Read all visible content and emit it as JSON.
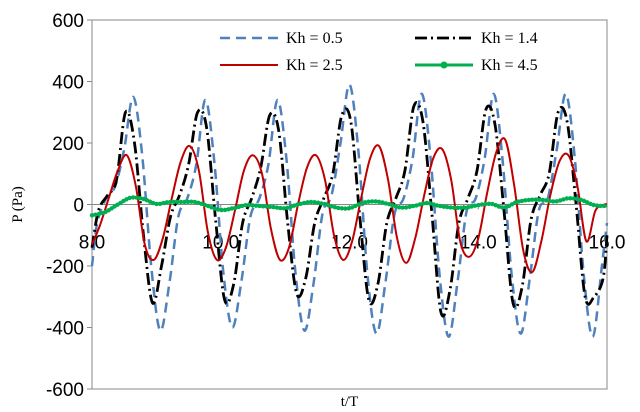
{
  "chart_data": {
    "type": "line",
    "title": "",
    "xlabel": "t/T",
    "ylabel": "P (Pa)",
    "xlim": [
      8.0,
      16.0
    ],
    "ylim": [
      -600,
      600
    ],
    "xticks": [
      "8.0",
      "10.0",
      "12.0",
      "14.0",
      "16.0"
    ],
    "yticks": [
      "600",
      "400",
      "200",
      "0",
      "-200",
      "-400",
      "-600"
    ],
    "grid": false,
    "legend_position": "top",
    "series": [
      {
        "name": "Kh = 0.5",
        "color": "#4f81bd",
        "style": "dashed",
        "x": [
          8.0,
          8.08,
          8.22,
          8.36,
          8.5,
          8.64,
          8.78,
          8.92,
          9.06,
          9.2,
          9.34,
          9.48,
          9.62,
          9.76,
          9.9,
          10.04,
          10.18,
          10.32,
          10.46,
          10.6,
          10.74,
          10.88,
          11.02,
          11.16,
          11.3,
          11.44,
          11.58,
          11.72,
          11.86,
          12.0,
          12.14,
          12.28,
          12.42,
          12.56,
          12.7,
          12.84,
          12.98,
          13.12,
          13.26,
          13.4,
          13.54,
          13.68,
          13.82,
          13.96,
          14.1,
          14.24,
          14.38,
          14.52,
          14.66,
          14.8,
          14.94,
          15.08,
          15.22,
          15.36,
          15.5,
          15.64,
          15.78,
          15.92,
          16.0
        ],
        "y": [
          -200,
          -60,
          20,
          60,
          180,
          350,
          160,
          -200,
          -410,
          -260,
          -40,
          20,
          130,
          340,
          140,
          -220,
          -400,
          -250,
          -40,
          20,
          130,
          340,
          150,
          -220,
          -410,
          -260,
          -30,
          30,
          200,
          390,
          170,
          -230,
          -420,
          -250,
          -30,
          20,
          150,
          360,
          150,
          -230,
          -430,
          -250,
          -20,
          20,
          150,
          360,
          140,
          -230,
          -420,
          -240,
          -20,
          20,
          180,
          360,
          150,
          -230,
          -430,
          -200,
          -60
        ]
      },
      {
        "name": "Kh = 1.4",
        "color": "#000000",
        "style": "dashdot",
        "x": [
          8.0,
          8.1,
          8.24,
          8.38,
          8.52,
          8.66,
          8.8,
          8.94,
          9.08,
          9.22,
          9.36,
          9.5,
          9.64,
          9.78,
          9.92,
          10.06,
          10.2,
          10.34,
          10.48,
          10.62,
          10.76,
          10.9,
          11.04,
          11.18,
          11.32,
          11.46,
          11.6,
          11.74,
          11.88,
          12.02,
          12.16,
          12.3,
          12.44,
          12.58,
          12.72,
          12.86,
          13.0,
          13.14,
          13.28,
          13.42,
          13.56,
          13.7,
          13.84,
          13.98,
          14.12,
          14.26,
          14.4,
          14.54,
          14.68,
          14.82,
          14.96,
          15.1,
          15.24,
          15.38,
          15.52,
          15.66,
          15.8,
          15.94,
          16.0
        ],
        "y": [
          -140,
          -20,
          30,
          80,
          300,
          200,
          -100,
          -320,
          -200,
          -40,
          30,
          130,
          300,
          250,
          -50,
          -310,
          -260,
          -60,
          20,
          120,
          290,
          240,
          -60,
          -290,
          -240,
          -60,
          20,
          100,
          290,
          270,
          -40,
          -310,
          -260,
          -60,
          20,
          110,
          320,
          270,
          -30,
          -350,
          -280,
          -60,
          20,
          110,
          310,
          260,
          -20,
          -320,
          -270,
          -50,
          30,
          100,
          300,
          270,
          0,
          -300,
          -300,
          -240,
          -100
        ]
      },
      {
        "name": "Kh = 2.5",
        "color": "#c00000",
        "style": "solid",
        "x": [
          8.0,
          8.12,
          8.26,
          8.4,
          8.54,
          8.68,
          8.82,
          8.96,
          9.1,
          9.24,
          9.38,
          9.52,
          9.66,
          9.8,
          9.94,
          10.08,
          10.22,
          10.36,
          10.5,
          10.64,
          10.78,
          10.92,
          11.06,
          11.2,
          11.34,
          11.48,
          11.62,
          11.76,
          11.9,
          12.04,
          12.18,
          12.32,
          12.46,
          12.6,
          12.74,
          12.88,
          13.02,
          13.16,
          13.3,
          13.44,
          13.58,
          13.72,
          13.86,
          14.0,
          14.14,
          14.28,
          14.42,
          14.56,
          14.7,
          14.84,
          14.98,
          15.12,
          15.26,
          15.4,
          15.54,
          15.68,
          15.82,
          15.96,
          16.0
        ],
        "y": [
          -130,
          -70,
          20,
          110,
          160,
          60,
          -130,
          -180,
          -110,
          20,
          140,
          190,
          110,
          -90,
          -180,
          -140,
          -20,
          110,
          160,
          100,
          -80,
          -180,
          -140,
          0,
          120,
          160,
          80,
          -100,
          -180,
          -120,
          20,
          150,
          190,
          80,
          -110,
          -190,
          -110,
          30,
          150,
          180,
          80,
          -120,
          -170,
          -110,
          40,
          170,
          210,
          60,
          -150,
          -220,
          -120,
          30,
          140,
          160,
          60,
          -120,
          -20,
          0,
          0
        ]
      },
      {
        "name": "Kh = 4.5",
        "color": "#00b050",
        "style": "solid-marker",
        "x": [
          8.0,
          8.2,
          8.4,
          8.6,
          8.8,
          9.0,
          9.2,
          9.4,
          9.6,
          9.8,
          10.0,
          10.2,
          10.4,
          10.6,
          10.8,
          11.0,
          11.2,
          11.4,
          11.6,
          11.8,
          12.0,
          12.2,
          12.4,
          12.6,
          12.8,
          13.0,
          13.2,
          13.4,
          13.6,
          13.8,
          14.0,
          14.2,
          14.4,
          14.6,
          14.8,
          15.0,
          15.2,
          15.4,
          15.6,
          15.8,
          16.0
        ],
        "y": [
          -35,
          -25,
          0,
          22,
          18,
          2,
          8,
          8,
          8,
          -5,
          -18,
          -12,
          -2,
          -5,
          -8,
          -12,
          0,
          8,
          2,
          -10,
          -12,
          5,
          10,
          2,
          -10,
          -5,
          5,
          -5,
          -10,
          -10,
          -2,
          2,
          -10,
          8,
          15,
          15,
          10,
          20,
          15,
          -2,
          -5
        ]
      }
    ]
  }
}
